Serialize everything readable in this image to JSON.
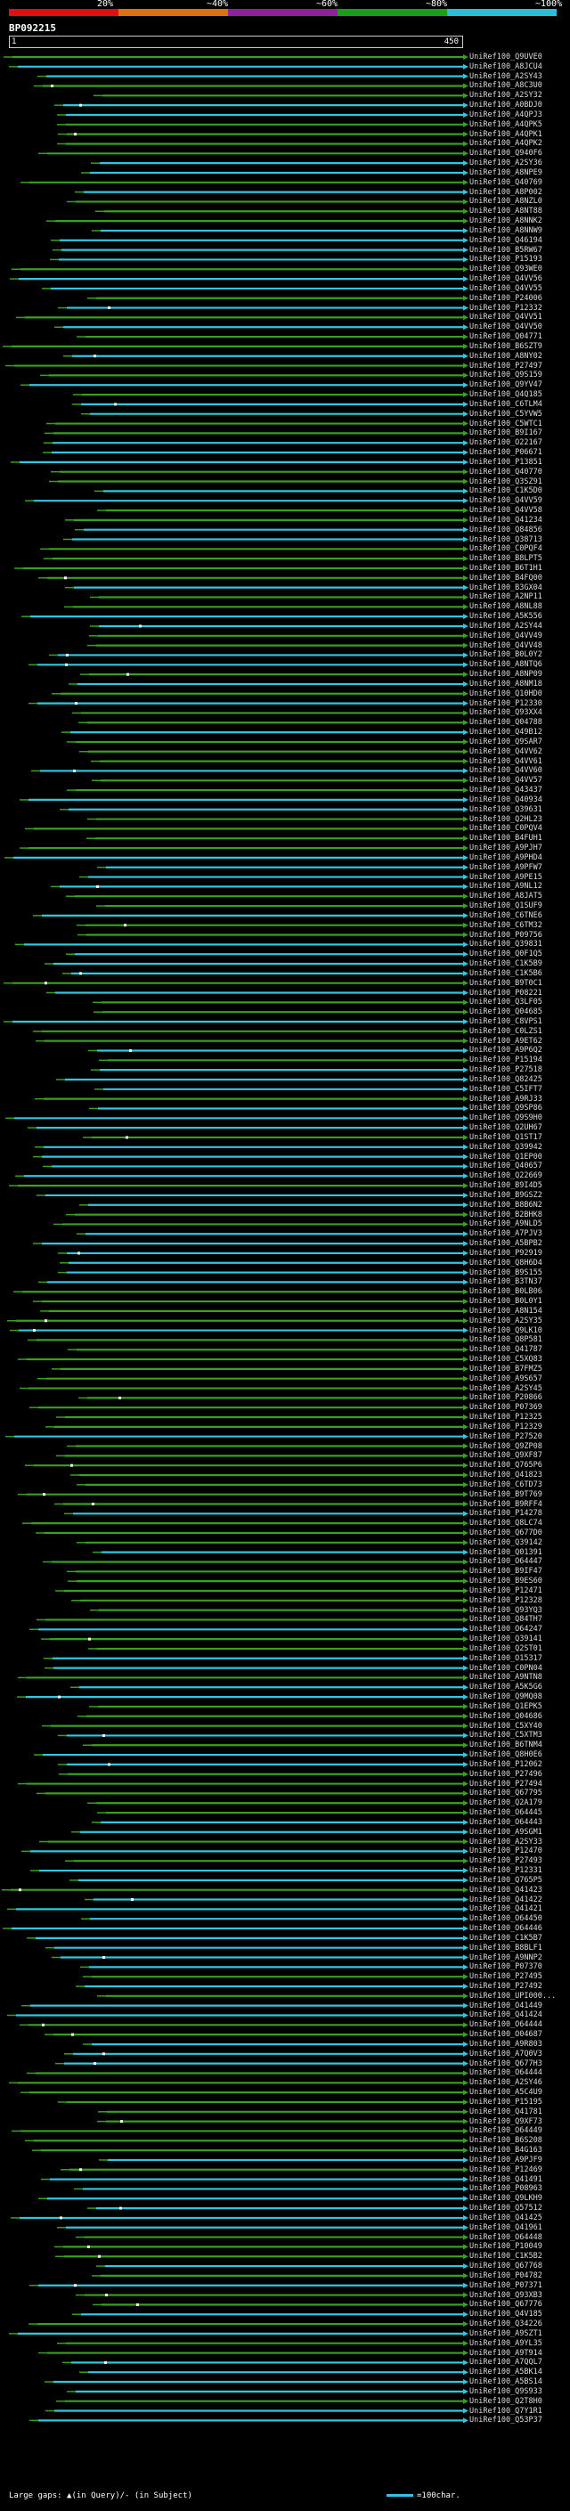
{
  "legend": {
    "labels": [
      "20%",
      "~40%",
      "~60%",
      "~80%",
      "~100%"
    ],
    "colors": [
      "#e01010",
      "#e07010",
      "#9020a0",
      "#18a018",
      "#28c0d8"
    ]
  },
  "query": {
    "id": "BP092215",
    "start": "1",
    "end": "450"
  },
  "colors": {
    "green": "#3aa020",
    "cyan": "#30c8e0",
    "white": "#ffffff"
  },
  "hits": [
    "UniRef100_Q9UVE0",
    "UniRef100_A8JCU4",
    "UniRef100_A2SY43",
    "UniRef100_A8C3U0",
    "UniRef100_A2SY32",
    "UniRef100_A0BDJ0",
    "UniRef100_A4QPJ3",
    "UniRef100_A4QPK5",
    "UniRef100_A4QPK1",
    "UniRef100_A4QPK2",
    "UniRef100_Q940F6",
    "UniRef100_A2SY36",
    "UniRef100_A8NPE9",
    "UniRef100_Q40769",
    "UniRef100_A8P002",
    "UniRef100_A8NZL0",
    "UniRef100_A8NT88",
    "UniRef100_A8NNK2",
    "UniRef100_A8NNW9",
    "UniRef100_Q46194",
    "UniRef100_B5RW67",
    "UniRef100_P15193",
    "UniRef100_Q93WE0",
    "UniRef100_Q4VV56",
    "UniRef100_Q4VV55",
    "UniRef100_P24006",
    "UniRef100_P12332",
    "UniRef100_Q4VV51",
    "UniRef100_Q4VV50",
    "UniRef100_Q04771",
    "UniRef100_B6SZT9",
    "UniRef100_A8NY02",
    "UniRef100_P27497",
    "UniRef100_Q9S159",
    "UniRef100_Q9YV47",
    "UniRef100_Q4Q185",
    "UniRef100_C6TLM4",
    "UniRef100_C5YVW5",
    "UniRef100_C5WTC1",
    "UniRef100_B9I167",
    "UniRef100_O22167",
    "UniRef100_P06671",
    "UniRef100_P13851",
    "UniRef100_Q40770",
    "UniRef100_Q3SZ91",
    "UniRef100_C1K5D0",
    "UniRef100_Q4VV59",
    "UniRef100_Q4VV58",
    "UniRef100_Q41234",
    "UniRef100_Q84856",
    "UniRef100_Q38713",
    "UniRef100_C0PQF4",
    "UniRef100_B8LPT5",
    "UniRef100_B6T1H1",
    "UniRef100_B4FQ00",
    "UniRef100_B3GX04",
    "UniRef100_A2NP11",
    "UniRef100_A8NL88",
    "UniRef100_A5K556",
    "UniRef100_A2SY44",
    "UniRef100_Q4VV49",
    "UniRef100_Q4VV48",
    "UniRef100_B0L0Y2",
    "UniRef100_A8NTQ6",
    "UniRef100_A8NP09",
    "UniRef100_A8NM18",
    "UniRef100_Q10HD0",
    "UniRef100_P12330",
    "UniRef100_Q93XX4",
    "UniRef100_Q04788",
    "UniRef100_Q49B12",
    "UniRef100_Q9SAR7",
    "UniRef100_Q4VV62",
    "UniRef100_Q4VV61",
    "UniRef100_Q4VV60",
    "UniRef100_Q4VV57",
    "UniRef100_Q43437",
    "UniRef100_Q40934",
    "UniRef100_Q39631",
    "UniRef100_Q2HL23",
    "UniRef100_C0PQV4",
    "UniRef100_B4FUH1",
    "UniRef100_A9PJH7",
    "UniRef100_A9PHD4",
    "UniRef100_A9PFW7",
    "UniRef100_A9PE15",
    "UniRef100_A9NL12",
    "UniRef100_A8JAT5",
    "UniRef100_Q1SUF9",
    "UniRef100_C6TNE6",
    "UniRef100_C6TM32",
    "UniRef100_P09756",
    "UniRef100_Q39831",
    "UniRef100_Q0F1Q5",
    "UniRef100_C1K5B9",
    "UniRef100_C1K5B6",
    "UniRef100_B9T0C1",
    "UniRef100_P08221",
    "UniRef100_Q3LF05",
    "UniRef100_Q04685",
    "UniRef100_C8VPS1",
    "UniRef100_C0LZS1",
    "UniRef100_A9ET62",
    "UniRef100_A9P6Q2",
    "UniRef100_P15194",
    "UniRef100_P27518",
    "UniRef100_Q82425",
    "UniRef100_C5IFT7",
    "UniRef100_A9RJ33",
    "UniRef100_Q9SP86",
    "UniRef100_Q9S9H0",
    "UniRef100_Q2UH67",
    "UniRef100_Q1ST17",
    "UniRef100_Q39942",
    "UniRef100_Q1EP00",
    "UniRef100_Q40657",
    "UniRef100_Q22669",
    "UniRef100_B9I4D5",
    "UniRef100_B9GSZ2",
    "UniRef100_B8B6N2",
    "UniRef100_B2BHK8",
    "UniRef100_A9NLD5",
    "UniRef100_A7PJV3",
    "UniRef100_A5BPB2",
    "UniRef100_P92919",
    "UniRef100_Q8H6D4",
    "UniRef100_B9S155",
    "UniRef100_B3TN37",
    "UniRef100_B0LB06",
    "UniRef100_B0L0Y1",
    "UniRef100_A8N154",
    "UniRef100_A2SY35",
    "UniRef100_Q9LK10",
    "UniRef100_Q8P581",
    "UniRef100_Q41787",
    "UniRef100_C5XQ83",
    "UniRef100_B7FMZ5",
    "UniRef100_A9S657",
    "UniRef100_A2SY45",
    "UniRef100_P20866",
    "UniRef100_P07369",
    "UniRef100_P12325",
    "UniRef100_P12329",
    "UniRef100_P27520",
    "UniRef100_Q9ZP08",
    "UniRef100_Q9XF87",
    "UniRef100_Q765P6",
    "UniRef100_Q41823",
    "UniRef100_C6TD73",
    "UniRef100_B9T769",
    "UniRef100_B9RFF4",
    "UniRef100_P14278",
    "UniRef100_Q8LC74",
    "UniRef100_Q677D0",
    "UniRef100_Q39142",
    "UniRef100_Q01391",
    "UniRef100_O64447",
    "UniRef100_B9IF47",
    "UniRef100_B9ES60",
    "UniRef100_P12471",
    "UniRef100_P12328",
    "UniRef100_Q93YQ3",
    "UniRef100_Q84TH7",
    "UniRef100_O64247",
    "UniRef100_Q39141",
    "UniRef100_Q2ST01",
    "UniRef100_O15317",
    "UniRef100_C0PN04",
    "UniRef100_A9NTN8",
    "UniRef100_A5K5G6",
    "UniRef100_Q9MQ08",
    "UniRef100_Q1EPK5",
    "UniRef100_Q04686",
    "UniRef100_C5XY40",
    "UniRef100_C5XTM3",
    "UniRef100_B6TNM4",
    "UniRef100_Q8H0E6",
    "UniRef100_P12062",
    "UniRef100_P27496",
    "UniRef100_P27494",
    "UniRef100_Q67795",
    "UniRef100_Q2A179",
    "UniRef100_O64445",
    "UniRef100_O64443",
    "UniRef100_A9SGM1",
    "UniRef100_A2SY33",
    "UniRef100_P12470",
    "UniRef100_P27493",
    "UniRef100_P12331",
    "UniRef100_Q765P5",
    "UniRef100_Q41423",
    "UniRef100_Q41422",
    "UniRef100_Q41421",
    "UniRef100_O64450",
    "UniRef100_O64446",
    "UniRef100_C1K5B7",
    "UniRef100_B8BLF1",
    "UniRef100_A9NNP2",
    "UniRef100_P07370",
    "UniRef100_P27495",
    "UniRef100_P27492",
    "UniRef100_UPI000...",
    "UniRef100_O41449",
    "UniRef100_Q41424",
    "UniRef100_O64444",
    "UniRef100_O04687",
    "UniRef100_A9R803",
    "UniRef100_A7Q0V3",
    "UniRef100_Q677H3",
    "UniRef100_O64444",
    "UniRef100_A2SY46",
    "UniRef100_A5C4U9",
    "UniRef100_P15195",
    "UniRef100_Q41781",
    "UniRef100_Q9XF73",
    "UniRef100_O64449",
    "UniRef100_B6S208",
    "UniRef100_B4G163",
    "UniRef100_A9PJF9",
    "UniRef100_P12469",
    "UniRef100_Q41491",
    "UniRef100_P08963",
    "UniRef100_Q9LKH9",
    "UniRef100_Q57512",
    "UniRef100_Q41425",
    "UniRef100_Q41961",
    "UniRef100_O64448",
    "UniRef100_P10049",
    "UniRef100_C1K5B2",
    "UniRef100_Q67768",
    "UniRef100_P04782",
    "UniRef100_P07371",
    "UniRef100_Q93XB3",
    "UniRef100_Q67776",
    "UniRef100_Q4V185",
    "UniRef100_Q34226",
    "UniRef100_A9SZT1",
    "UniRef100_A9YL35",
    "UniRef100_A9T914",
    "UniRef100_A7QQL7",
    "UniRef100_A5BK14",
    "UniRef100_A5BS14",
    "UniRef100_Q9S933",
    "UniRef100_Q2T8H0",
    "UniRef100_Q7Y1R1",
    "UniRef100_Q53P37"
  ],
  "footer": {
    "text": "Large gaps: ▲(in Query)/- (in Subject)",
    "scale": "=100char."
  }
}
